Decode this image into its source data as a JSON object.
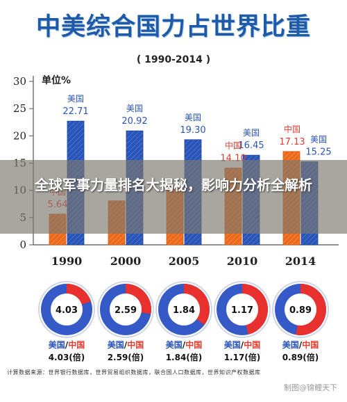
{
  "title": "中美综合国力占世界比重",
  "subtitle": "( 1990-2014 )",
  "banner": "全球军事力量排名大揭秘，影响力分析全解析",
  "source": "计算数据来源：世界银行数据库，世界贸易组织数据库，联合国人口数据库，世界知识产权数据库",
  "watermark": "制图@锦鲤天下",
  "colors": {
    "us": "#2a55b8",
    "china": "#ec6a1c",
    "china_label": "#e63c2e",
    "ring_red": "#e8312e",
    "ring_blue": "#3559c7"
  },
  "chart_data": {
    "type": "bar",
    "title": "中美综合国力占世界比重",
    "subtitle": "( 1990-2014 )",
    "ylabel": "单位%",
    "ylim": [
      0,
      30
    ],
    "yticks": [
      0,
      5,
      10,
      15,
      20,
      25,
      30
    ],
    "categories": [
      "1990",
      "2000",
      "2005",
      "2010",
      "2014"
    ],
    "series": [
      {
        "name": "中国",
        "values": [
          5.64,
          8.08,
          10.49,
          14.1,
          17.13
        ]
      },
      {
        "name": "美国",
        "values": [
          22.71,
          20.92,
          19.3,
          16.45,
          15.25
        ]
      }
    ],
    "shown_labels": {
      "中国": [
        "5.64",
        "",
        "",
        "14.10",
        "17.13"
      ],
      "美国": [
        "22.71",
        "20.92",
        "19.30",
        "16.45",
        "15.25"
      ]
    },
    "ratios": [
      {
        "value": "4.03",
        "caption_us": "美国",
        "sep": "/",
        "caption_cn": "中国",
        "caption_val": "4.03(倍)"
      },
      {
        "value": "2.59",
        "caption_us": "美国",
        "sep": "/",
        "caption_cn": "中国",
        "caption_val": "2.59(倍)"
      },
      {
        "value": "1.84",
        "caption_us": "美国",
        "sep": "/",
        "caption_cn": "中国",
        "caption_val": "1.84(倍)"
      },
      {
        "value": "1.17",
        "caption_us": "美国",
        "sep": "/",
        "caption_cn": "中国",
        "caption_val": "1.17(倍)"
      },
      {
        "value": "0.89",
        "caption_us": "美国",
        "sep": "/",
        "caption_cn": "中国",
        "caption_val": "0.89(倍)"
      }
    ]
  }
}
